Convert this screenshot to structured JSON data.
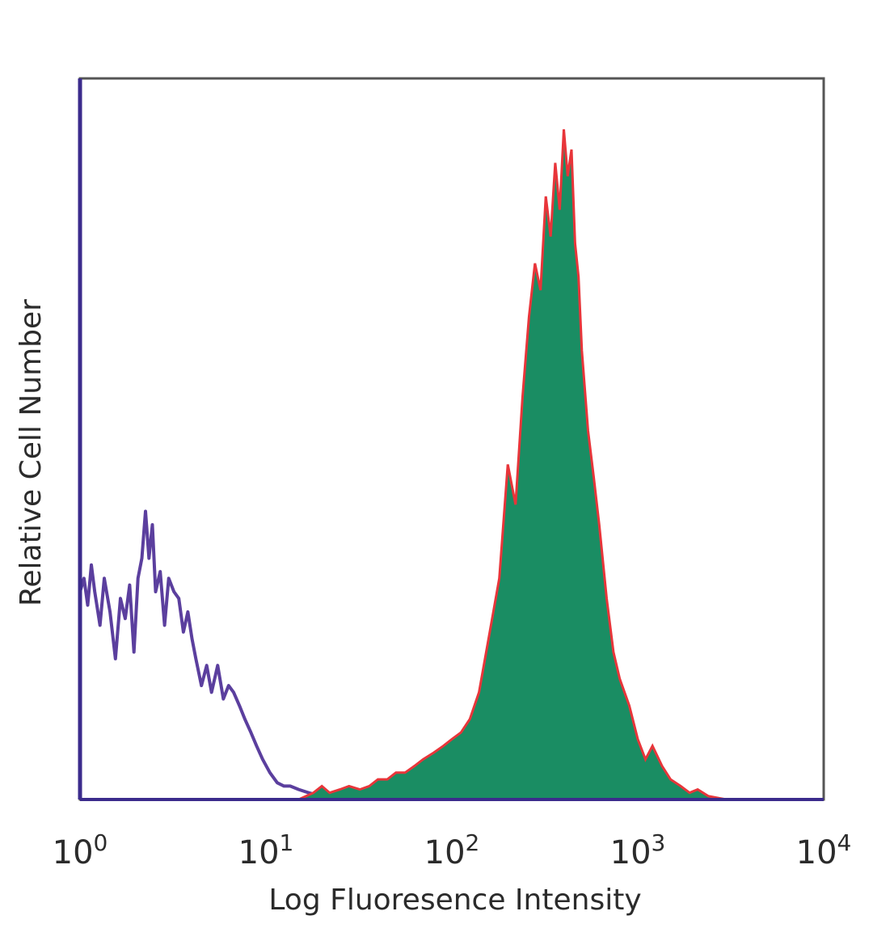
{
  "chart_data": {
    "type": "area",
    "title": "",
    "xlabel": "Log Fluoresence Intensity",
    "ylabel": "Relative Cell Number",
    "x_scale": "log",
    "xlim": [
      1,
      10000
    ],
    "ylim": [
      0,
      1
    ],
    "grid": false,
    "legend": "none",
    "x_ticks": [
      {
        "base": "10",
        "exp": "0",
        "value": 1
      },
      {
        "base": "10",
        "exp": "1",
        "value": 10
      },
      {
        "base": "10",
        "exp": "2",
        "value": 100
      },
      {
        "base": "10",
        "exp": "3",
        "value": 1000
      },
      {
        "base": "10",
        "exp": "4",
        "value": 10000
      }
    ],
    "series": [
      {
        "style": "outline",
        "color": "#5b3f9e",
        "x": [
          1,
          1.05,
          1.1,
          1.15,
          1.2,
          1.28,
          1.35,
          1.45,
          1.55,
          1.65,
          1.75,
          1.85,
          1.95,
          2.05,
          2.15,
          2.25,
          2.35,
          2.45,
          2.55,
          2.7,
          2.85,
          3.0,
          3.2,
          3.4,
          3.6,
          3.8,
          4.0,
          4.2,
          4.5,
          4.8,
          5.1,
          5.5,
          5.9,
          6.3,
          6.7,
          7.2,
          7.7,
          8.3,
          8.9,
          9.6,
          10.5,
          11.5,
          12.5,
          13.5,
          15,
          17,
          20,
          25,
          35
        ],
        "y": [
          0.31,
          0.33,
          0.29,
          0.35,
          0.31,
          0.26,
          0.33,
          0.28,
          0.21,
          0.3,
          0.27,
          0.32,
          0.22,
          0.33,
          0.36,
          0.43,
          0.36,
          0.41,
          0.31,
          0.34,
          0.26,
          0.33,
          0.31,
          0.3,
          0.25,
          0.28,
          0.24,
          0.21,
          0.17,
          0.2,
          0.16,
          0.2,
          0.15,
          0.17,
          0.16,
          0.14,
          0.12,
          0.1,
          0.08,
          0.06,
          0.04,
          0.025,
          0.02,
          0.02,
          0.015,
          0.01,
          0.005,
          0.0,
          0.0
        ]
      },
      {
        "style": "filled",
        "color": "#1a8d63",
        "edge_color": "#e8353a",
        "x": [
          15,
          18,
          20,
          22,
          25,
          28,
          32,
          36,
          40,
          45,
          50,
          56,
          63,
          70,
          80,
          90,
          100,
          112,
          125,
          140,
          160,
          180,
          200,
          220,
          240,
          260,
          280,
          300,
          320,
          340,
          360,
          380,
          400,
          420,
          440,
          460,
          480,
          500,
          540,
          580,
          620,
          680,
          740,
          800,
          900,
          1000,
          1100,
          1200,
          1350,
          1500,
          1700,
          1900,
          2100,
          2400,
          3000
        ],
        "y": [
          0.0,
          0.01,
          0.02,
          0.01,
          0.015,
          0.02,
          0.015,
          0.02,
          0.03,
          0.03,
          0.04,
          0.04,
          0.05,
          0.06,
          0.07,
          0.08,
          0.09,
          0.1,
          0.12,
          0.16,
          0.25,
          0.33,
          0.5,
          0.44,
          0.6,
          0.72,
          0.8,
          0.76,
          0.9,
          0.84,
          0.95,
          0.88,
          1.0,
          0.93,
          0.97,
          0.83,
          0.78,
          0.67,
          0.55,
          0.48,
          0.41,
          0.3,
          0.22,
          0.18,
          0.14,
          0.09,
          0.06,
          0.08,
          0.05,
          0.03,
          0.02,
          0.01,
          0.015,
          0.005,
          0.0
        ]
      }
    ]
  }
}
